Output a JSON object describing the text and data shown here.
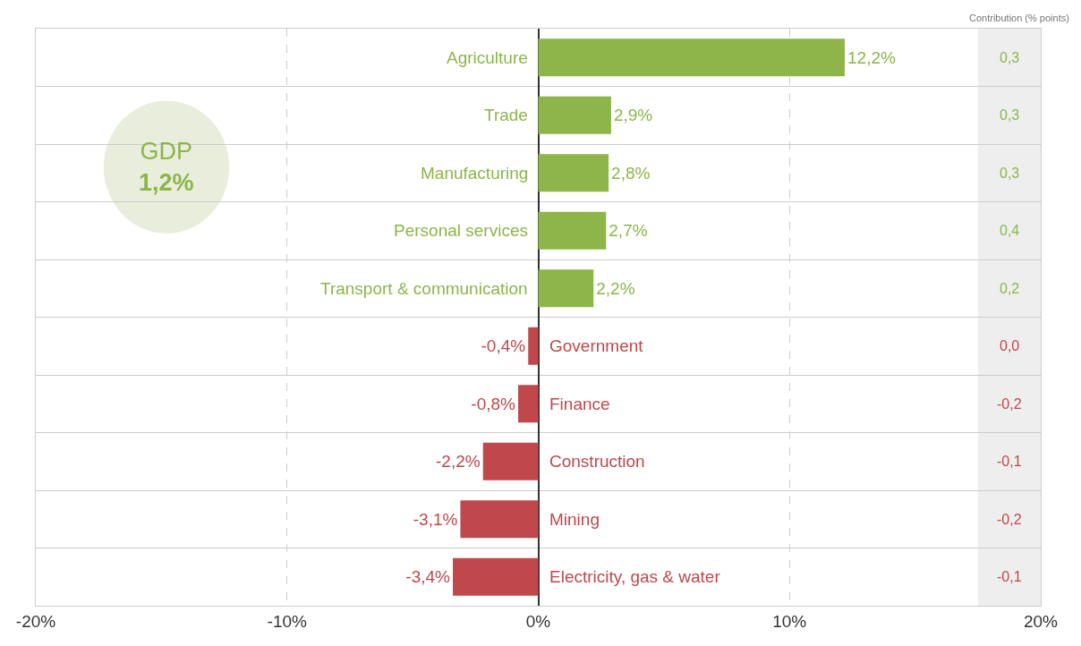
{
  "chart_data": {
    "type": "bar",
    "orientation": "horizontal",
    "categories": [
      "Agriculture",
      "Trade",
      "Manufacturing",
      "Personal services",
      "Transport & communication",
      "Government",
      "Finance",
      "Construction",
      "Mining",
      "Electricity, gas & water"
    ],
    "values": [
      12.2,
      2.9,
      2.8,
      2.7,
      2.2,
      -0.4,
      -0.8,
      -2.2,
      -3.1,
      -3.4
    ],
    "value_labels": [
      "12,2%",
      "2,9%",
      "2,8%",
      "2,7%",
      "2,2%",
      "-0,4%",
      "-0,8%",
      "-2,2%",
      "-3,1%",
      "-3,4%"
    ],
    "colors": [
      "#8db54a",
      "#8db54a",
      "#8db54a",
      "#8db54a",
      "#8db54a",
      "#c0474b",
      "#c0474b",
      "#c0474b",
      "#c0474b",
      "#c0474b"
    ],
    "xlim": [
      -20,
      20
    ],
    "xticks": [
      {
        "value": -20,
        "label": "-20%"
      },
      {
        "value": -10,
        "label": "-10%"
      },
      {
        "value": 0,
        "label": "0%"
      },
      {
        "value": 10,
        "label": "10%"
      },
      {
        "value": 20,
        "label": "20%"
      }
    ],
    "grid": true,
    "tick_labels": "x",
    "bands": [
      {
        "axis": "x",
        "from": 17.5,
        "to": 20,
        "color": "#eeeeee"
      }
    ],
    "annotations": [
      "Contribution (% points)",
      "0,3",
      "0,3",
      "0,3",
      "0,4",
      "0,2",
      "0,0",
      "-0,2",
      "-0,1",
      "-0,2",
      "-0,1",
      "GDP",
      "1,2%"
    ]
  }
}
